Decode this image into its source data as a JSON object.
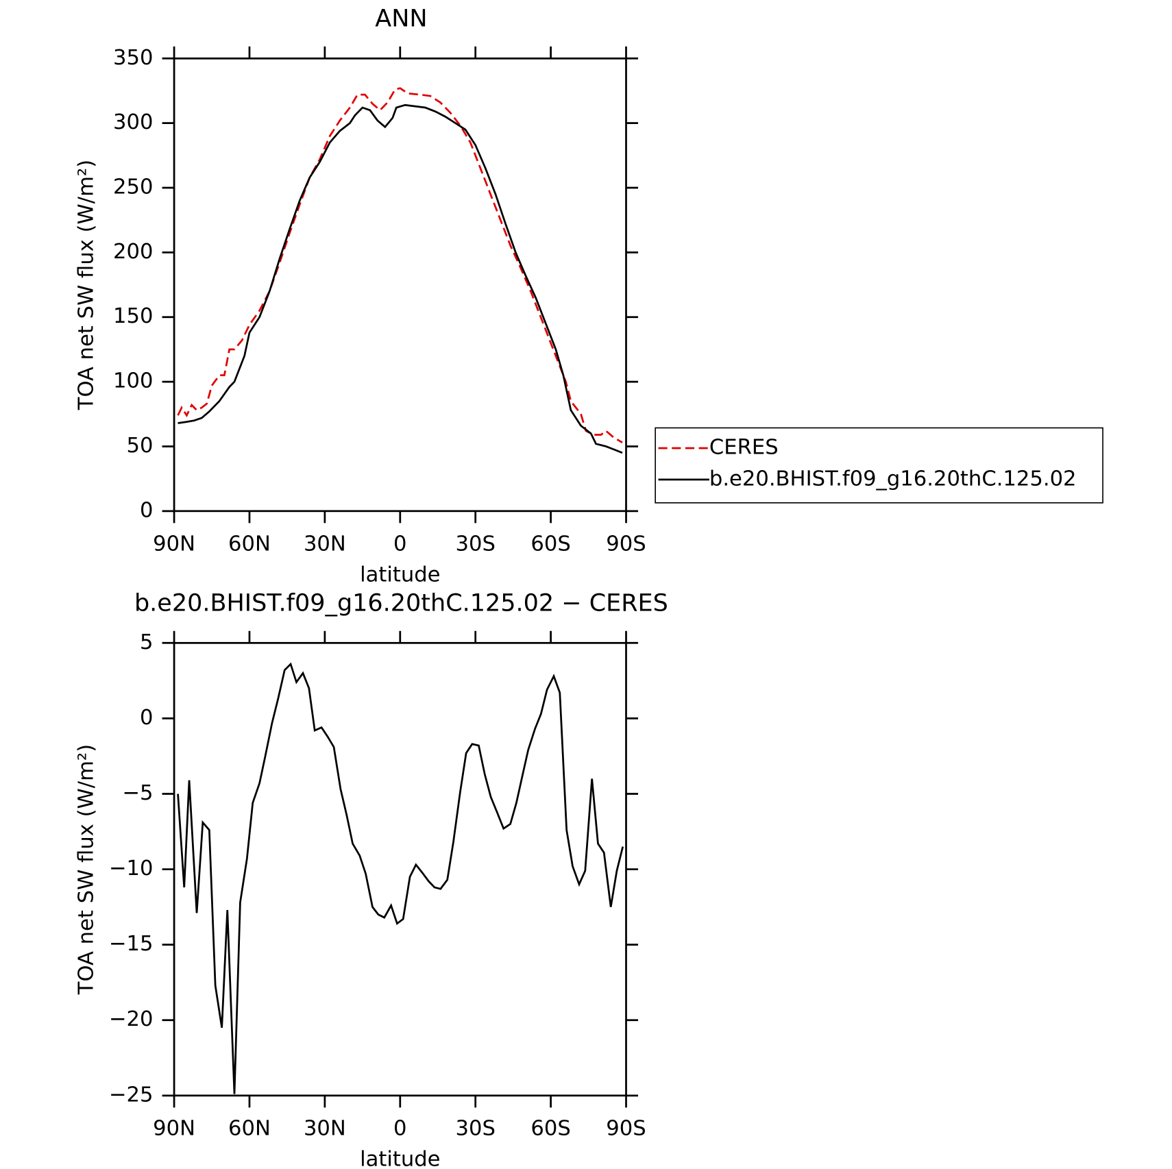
{
  "chart_data": [
    {
      "type": "line",
      "title": "ANN",
      "xlabel": "latitude",
      "ylabel": "TOA net SW flux (W/m²)",
      "xlim": [
        90,
        -90
      ],
      "xticks": [
        {
          "value": 90,
          "label": "90N"
        },
        {
          "value": 60,
          "label": "60N"
        },
        {
          "value": 30,
          "label": "30N"
        },
        0,
        {
          "value": -30,
          "label": "30S"
        },
        {
          "value": -60,
          "label": "60S"
        },
        {
          "value": -90,
          "label": "90S"
        }
      ],
      "ylim": [
        0,
        350
      ],
      "yticks": [
        0,
        50,
        100,
        150,
        200,
        250,
        300,
        350
      ],
      "legend": "right",
      "series": [
        {
          "name": "CERES",
          "color": "#e00000",
          "dash": true,
          "x": [
            88.5,
            87,
            85,
            83,
            81,
            79,
            77,
            75,
            72,
            70,
            68,
            66,
            63,
            60,
            56,
            52,
            48,
            44,
            40,
            36,
            32,
            28,
            24,
            20,
            17,
            14,
            11,
            8,
            5,
            2,
            0,
            -3,
            -8,
            -12,
            -16,
            -20,
            -24,
            -28,
            -32,
            -36,
            -40,
            -44,
            -48,
            -52,
            -56,
            -60,
            -64,
            -66,
            -68,
            -72,
            -74,
            -77,
            -80,
            -82,
            -85,
            -88.5
          ],
          "values": [
            74,
            80,
            74,
            82,
            78,
            80,
            83,
            97,
            105,
            105,
            125,
            125,
            132,
            144,
            155,
            170,
            192,
            215,
            237,
            258,
            272,
            290,
            302,
            312,
            322,
            322,
            315,
            310,
            316,
            326,
            327,
            323,
            322,
            321,
            316,
            308,
            298,
            285,
            265,
            245,
            225,
            205,
            188,
            170,
            150,
            130,
            110,
            100,
            85,
            75,
            62,
            59,
            59,
            62,
            57,
            53
          ]
        },
        {
          "name": "b.e20.BHIST.f09_g16.20thC.125.02",
          "color": "#000000",
          "dash": false,
          "x": [
            88.5,
            85,
            82,
            79,
            76,
            72,
            68,
            66,
            62,
            60,
            56,
            52,
            48,
            44,
            40,
            36,
            32,
            28,
            24,
            20,
            18,
            15,
            12,
            9,
            6,
            3,
            1.5,
            -2,
            -6,
            -10,
            -14,
            -18,
            -22,
            -26,
            -30,
            -34,
            -38,
            -42,
            -46,
            -50,
            -54,
            -58,
            -60,
            -62,
            -65,
            -68,
            -72,
            -76,
            -78,
            -82,
            -86,
            -88.5
          ],
          "values": [
            68,
            69,
            70,
            72,
            77,
            85,
            96,
            100,
            120,
            138,
            150,
            170,
            195,
            218,
            240,
            258,
            270,
            285,
            294,
            300,
            306,
            312,
            310,
            302,
            297,
            304,
            312,
            314,
            313,
            312,
            309,
            305,
            300,
            295,
            283,
            265,
            245,
            222,
            200,
            182,
            165,
            145,
            135,
            125,
            105,
            78,
            66,
            60,
            52,
            50,
            47,
            45
          ]
        }
      ]
    },
    {
      "type": "line",
      "title": "b.e20.BHIST.f09_g16.20thC.125.02 − CERES",
      "xlabel": "latitude",
      "ylabel": "TOA net SW flux (W/m²)",
      "xlim": [
        90,
        -90
      ],
      "xticks": [
        {
          "value": 90,
          "label": "90N"
        },
        {
          "value": 60,
          "label": "60N"
        },
        {
          "value": 30,
          "label": "30N"
        },
        0,
        {
          "value": -30,
          "label": "30S"
        },
        {
          "value": -60,
          "label": "60S"
        },
        {
          "value": -90,
          "label": "90S"
        }
      ],
      "ylim": [
        -25,
        5
      ],
      "yticks": [
        5,
        0,
        {
          "value": -5,
          "label": "−5"
        },
        {
          "value": -10,
          "label": "−10"
        },
        {
          "value": -15,
          "label": "−15"
        },
        {
          "value": -20,
          "label": "−20"
        },
        {
          "value": -25,
          "label": "−25"
        }
      ],
      "series": [
        {
          "color": "#000000",
          "dash": false,
          "x": [
            88.5,
            86,
            84,
            81,
            78.6,
            76,
            73.6,
            71,
            68.8,
            66,
            63.7,
            61,
            58.7,
            56,
            53.7,
            51,
            48.6,
            46,
            43.6,
            41.3,
            38.7,
            36.3,
            34,
            31.3,
            28.9,
            26.4,
            23.7,
            21.3,
            18.9,
            16.1,
            13.7,
            11,
            8.7,
            6.3,
            3.6,
            1.2,
            -1.2,
            -3.9,
            -6.3,
            -8.7,
            -11.4,
            -13.7,
            -16.1,
            -18.8,
            -21.2,
            -23.9,
            -26.3,
            -28.7,
            -31.3,
            -33.7,
            -36.1,
            -38.8,
            -41.2,
            -43.9,
            -46.3,
            -48.7,
            -51,
            -53.7,
            -56.1,
            -58.5,
            -61.2,
            -63.6,
            -66.3,
            -68.7,
            -71.3,
            -73.7,
            -76.4,
            -78.8,
            -81.2,
            -83.9,
            -86.3,
            -88.7
          ],
          "values": [
            -5,
            -11.2,
            -4.1,
            -12.9,
            -6.9,
            -7.4,
            -17.7,
            -20.5,
            -12.7,
            -24.9,
            -12.2,
            -9.3,
            -5.6,
            -4.3,
            -2.5,
            -0.3,
            1.3,
            3.2,
            3.6,
            2.4,
            3.0,
            2.0,
            -0.8,
            -0.6,
            -1.2,
            -1.9,
            -4.7,
            -6.4,
            -8.3,
            -9.1,
            -10.3,
            -12.5,
            -13,
            -13.2,
            -12.4,
            -13.6,
            -13.3,
            -10.5,
            -9.7,
            -10.2,
            -10.8,
            -11.2,
            -11.3,
            -10.7,
            -8.2,
            -4.9,
            -2.3,
            -1.7,
            -1.8,
            -3.7,
            -5.2,
            -6.3,
            -7.3,
            -7.0,
            -5.6,
            -3.8,
            -2.1,
            -0.7,
            0.3,
            1.9,
            2.8,
            1.7,
            -7.4,
            -9.8,
            -11,
            -10.1,
            -4.0,
            -8.3,
            -8.9,
            -12.5,
            -10.1,
            -8.5
          ]
        }
      ]
    }
  ]
}
